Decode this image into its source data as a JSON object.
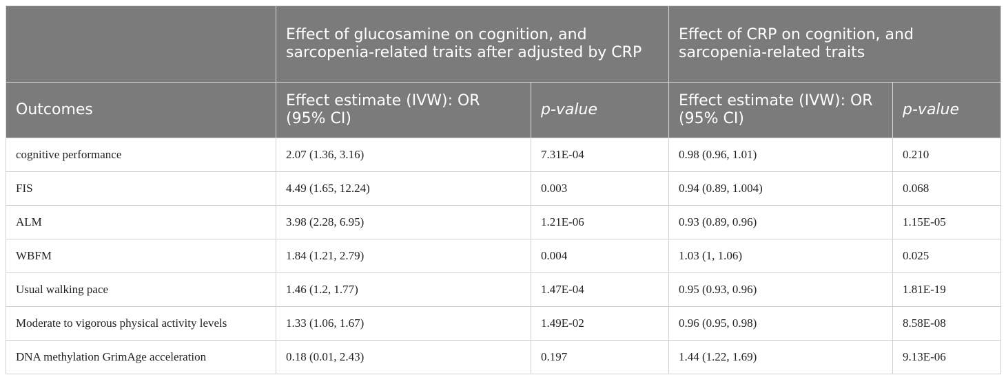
{
  "header": {
    "corner": "",
    "group1": "Effect of glucosamine on cognition, and sarcopenia-related traits after adjusted by CRP",
    "group2": "Effect of CRP on cognition, and sarcopenia-related traits",
    "outcomes": "Outcomes",
    "effect1": "Effect estimate (IVW): OR (95% CI)",
    "pvalue1": "p-value",
    "effect2": "Effect estimate (IVW): OR (95% CI)",
    "pvalue2": "p-value"
  },
  "rows": [
    {
      "outcome": "cognitive performance",
      "g_or": "2.07 (1.36, 3.16)",
      "g_p": "7.31E-04",
      "c_or": "0.98 (0.96, 1.01)",
      "c_p": "0.210"
    },
    {
      "outcome": "FIS",
      "g_or": "4.49 (1.65, 12.24)",
      "g_p": "0.003",
      "c_or": "0.94 (0.89, 1.004)",
      "c_p": "0.068"
    },
    {
      "outcome": "ALM",
      "g_or": "3.98 (2.28, 6.95)",
      "g_p": "1.21E-06",
      "c_or": "0.93 (0.89, 0.96)",
      "c_p": "1.15E-05"
    },
    {
      "outcome": "WBFM",
      "g_or": "1.84 (1.21, 2.79)",
      "g_p": "0.004",
      "c_or": "1.03 (1, 1.06)",
      "c_p": "0.025"
    },
    {
      "outcome": "Usual walking pace",
      "g_or": "1.46 (1.2, 1.77)",
      "g_p": "1.47E-04",
      "c_or": "0.95 (0.93, 0.96)",
      "c_p": "1.81E-19"
    },
    {
      "outcome": "Moderate to vigorous physical activity levels",
      "g_or": "1.33 (1.06, 1.67)",
      "g_p": "1.49E-02",
      "c_or": "0.96 (0.95, 0.98)",
      "c_p": "8.58E-08"
    },
    {
      "outcome": "DNA methylation GrimAge acceleration",
      "g_or": "0.18 (0.01, 2.43)",
      "g_p": "0.197",
      "c_or": "1.44 (1.22, 1.69)",
      "c_p": "9.13E-06"
    }
  ]
}
